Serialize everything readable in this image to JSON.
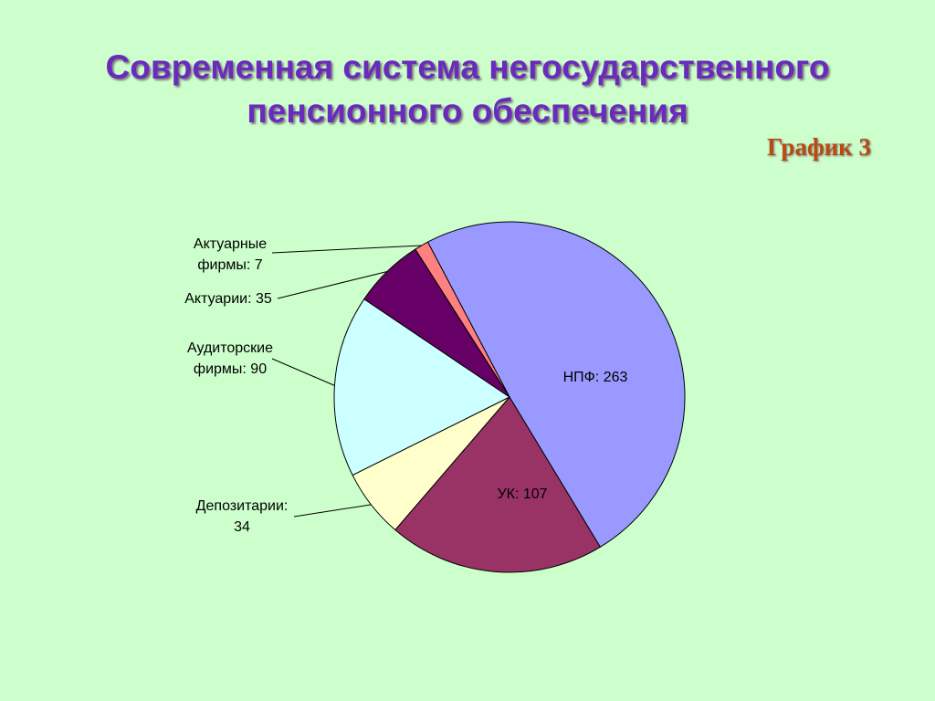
{
  "chart_data": {
    "type": "pie",
    "title": "Современная система негосударственного пенсионного обеспечения",
    "annotation": "График 3",
    "values": [
      263,
      107,
      34,
      90,
      35,
      7
    ],
    "value_labels": [
      "НПФ: 263",
      "УК: 107",
      "Депозитарии: 34",
      "Аудиторские фирмы: 90",
      "Актуарии: 35",
      "Актуарные фирмы: 7"
    ],
    "colors": [
      "#9999ff",
      "#993366",
      "#ffffcc",
      "#ccffff",
      "#660066",
      "#ff8080"
    ]
  }
}
